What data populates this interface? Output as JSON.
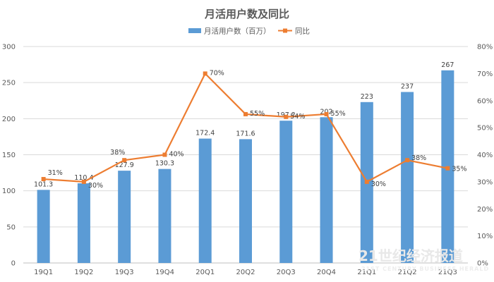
{
  "chart_data": {
    "type": "bar",
    "title": "月活用户数及同比",
    "categories": [
      "19Q1",
      "19Q2",
      "19Q3",
      "19Q4",
      "20Q1",
      "20Q2",
      "20Q3",
      "20Q4",
      "21Q1",
      "21Q2",
      "21Q3"
    ],
    "series": [
      {
        "name": "月活用户数（百万）",
        "type": "bar",
        "axis": "left",
        "values": [
          101.3,
          110.4,
          127.9,
          130.3,
          172.4,
          171.6,
          197.2,
          202,
          223,
          237,
          267
        ],
        "labels": [
          "101.3",
          "110.4",
          "127.9",
          "130.3",
          "172.4",
          "171.6",
          "197.2",
          "202",
          "223",
          "237",
          "267"
        ],
        "color": "#5b9bd5"
      },
      {
        "name": "同比",
        "type": "line",
        "axis": "right",
        "values": [
          31,
          30,
          38,
          40,
          70,
          55,
          54,
          55,
          30,
          38,
          35
        ],
        "labels": [
          "31%",
          "30%",
          "38%",
          "40%",
          "70%",
          "55%",
          "54%",
          "55%",
          "30%",
          "38%",
          "35%"
        ],
        "color": "#ed7d31"
      }
    ],
    "y_left": {
      "min": 0,
      "max": 300,
      "step": 50,
      "ticks": [
        "0",
        "50",
        "100",
        "150",
        "200",
        "250",
        "300"
      ]
    },
    "y_right": {
      "min": 0,
      "max": 80,
      "step": 10,
      "ticks": [
        "0%",
        "10%",
        "20%",
        "30%",
        "40%",
        "50%",
        "60%",
        "70%",
        "80%"
      ]
    },
    "grid": true,
    "legend_position": "top-center"
  },
  "watermark": {
    "text": "21世纪经济报道",
    "subtext": "21ST CENTURY BUSINESS HERALD"
  }
}
